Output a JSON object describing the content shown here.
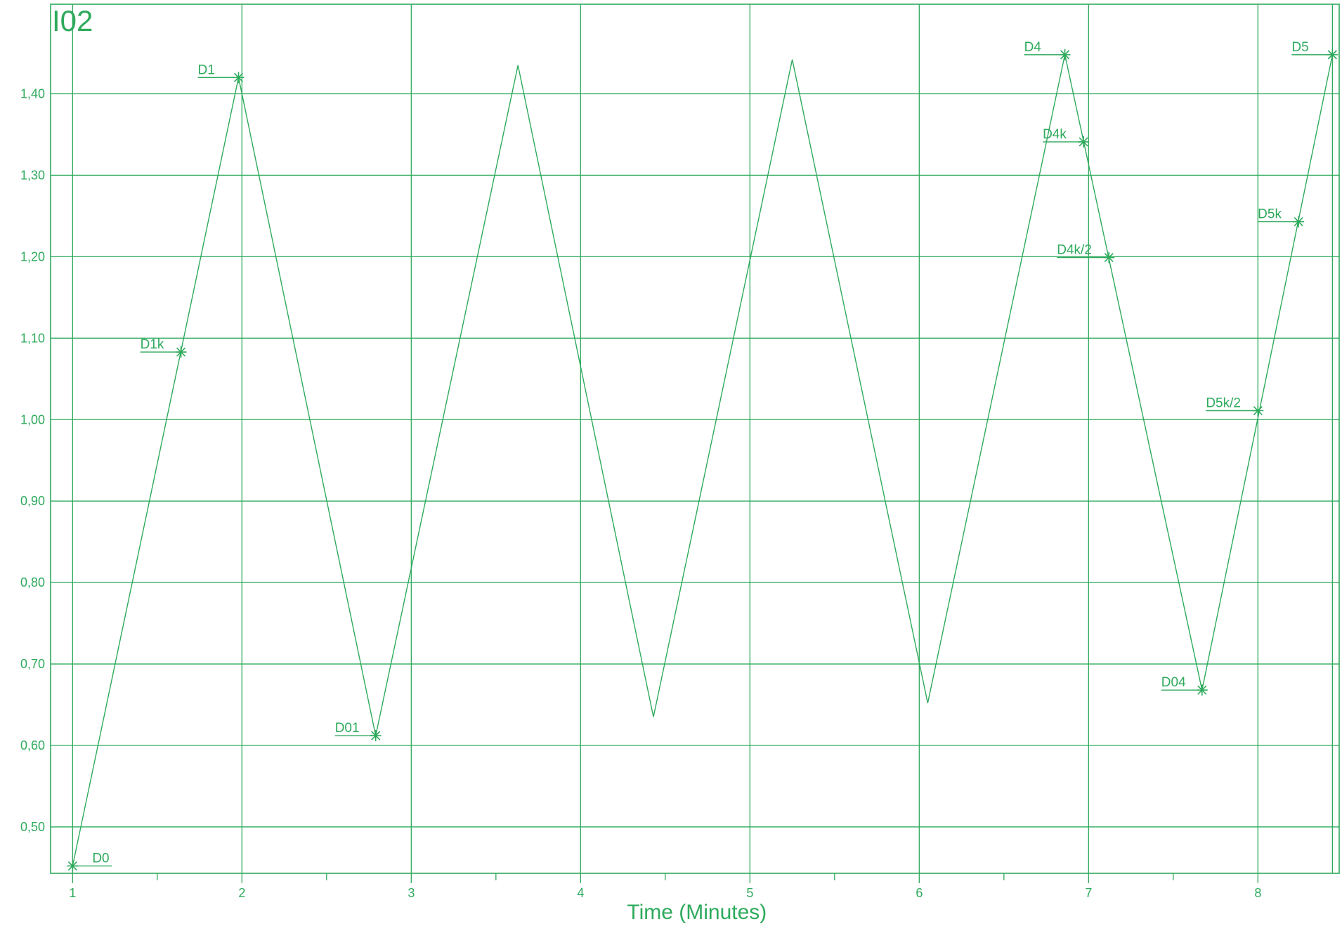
{
  "chart_data": {
    "type": "line",
    "title": "I02",
    "xlabel": "Time (Minutes)",
    "ylabel": "",
    "xlim": [
      0.87,
      8.48
    ],
    "ylim": [
      0.443,
      1.51
    ],
    "x_ticks": [
      "1",
      "2",
      "3",
      "4",
      "5",
      "6",
      "7",
      "8"
    ],
    "y_ticks": [
      "0,50",
      "0,60",
      "0,70",
      "0,80",
      "0,90",
      "1,00",
      "1,10",
      "1,20",
      "1,30",
      "1,40"
    ],
    "grid": true,
    "color": "#2eaa5c",
    "series": [
      {
        "x": [
          1.0,
          1.98,
          2.79,
          3.63,
          4.43,
          5.25,
          6.05,
          6.86,
          7.67,
          8.44
        ],
        "values": [
          0.452,
          1.42,
          0.612,
          1.435,
          0.635,
          1.442,
          0.652,
          1.448,
          0.668,
          1.448
        ]
      }
    ],
    "annotations": [
      {
        "label": "D0",
        "x": 1.0,
        "y": 0.452,
        "side": "right"
      },
      {
        "label": "D1k",
        "x": 1.64,
        "y": 1.083,
        "side": "left"
      },
      {
        "label": "D1",
        "x": 1.98,
        "y": 1.42,
        "side": "left"
      },
      {
        "label": "D01",
        "x": 2.79,
        "y": 0.612,
        "side": "left"
      },
      {
        "label": "D4",
        "x": 6.86,
        "y": 1.448,
        "side": "left"
      },
      {
        "label": "D4k",
        "x": 6.97,
        "y": 1.341,
        "side": "left"
      },
      {
        "label": "D4k/2",
        "x": 7.12,
        "y": 1.199,
        "side": "left"
      },
      {
        "label": "D04",
        "x": 7.67,
        "y": 0.668,
        "side": "left"
      },
      {
        "label": "D5k/2",
        "x": 8.0,
        "y": 1.011,
        "side": "left"
      },
      {
        "label": "D5k",
        "x": 8.24,
        "y": 1.243,
        "side": "left"
      },
      {
        "label": "D5",
        "x": 8.44,
        "y": 1.448,
        "side": "left"
      }
    ]
  }
}
